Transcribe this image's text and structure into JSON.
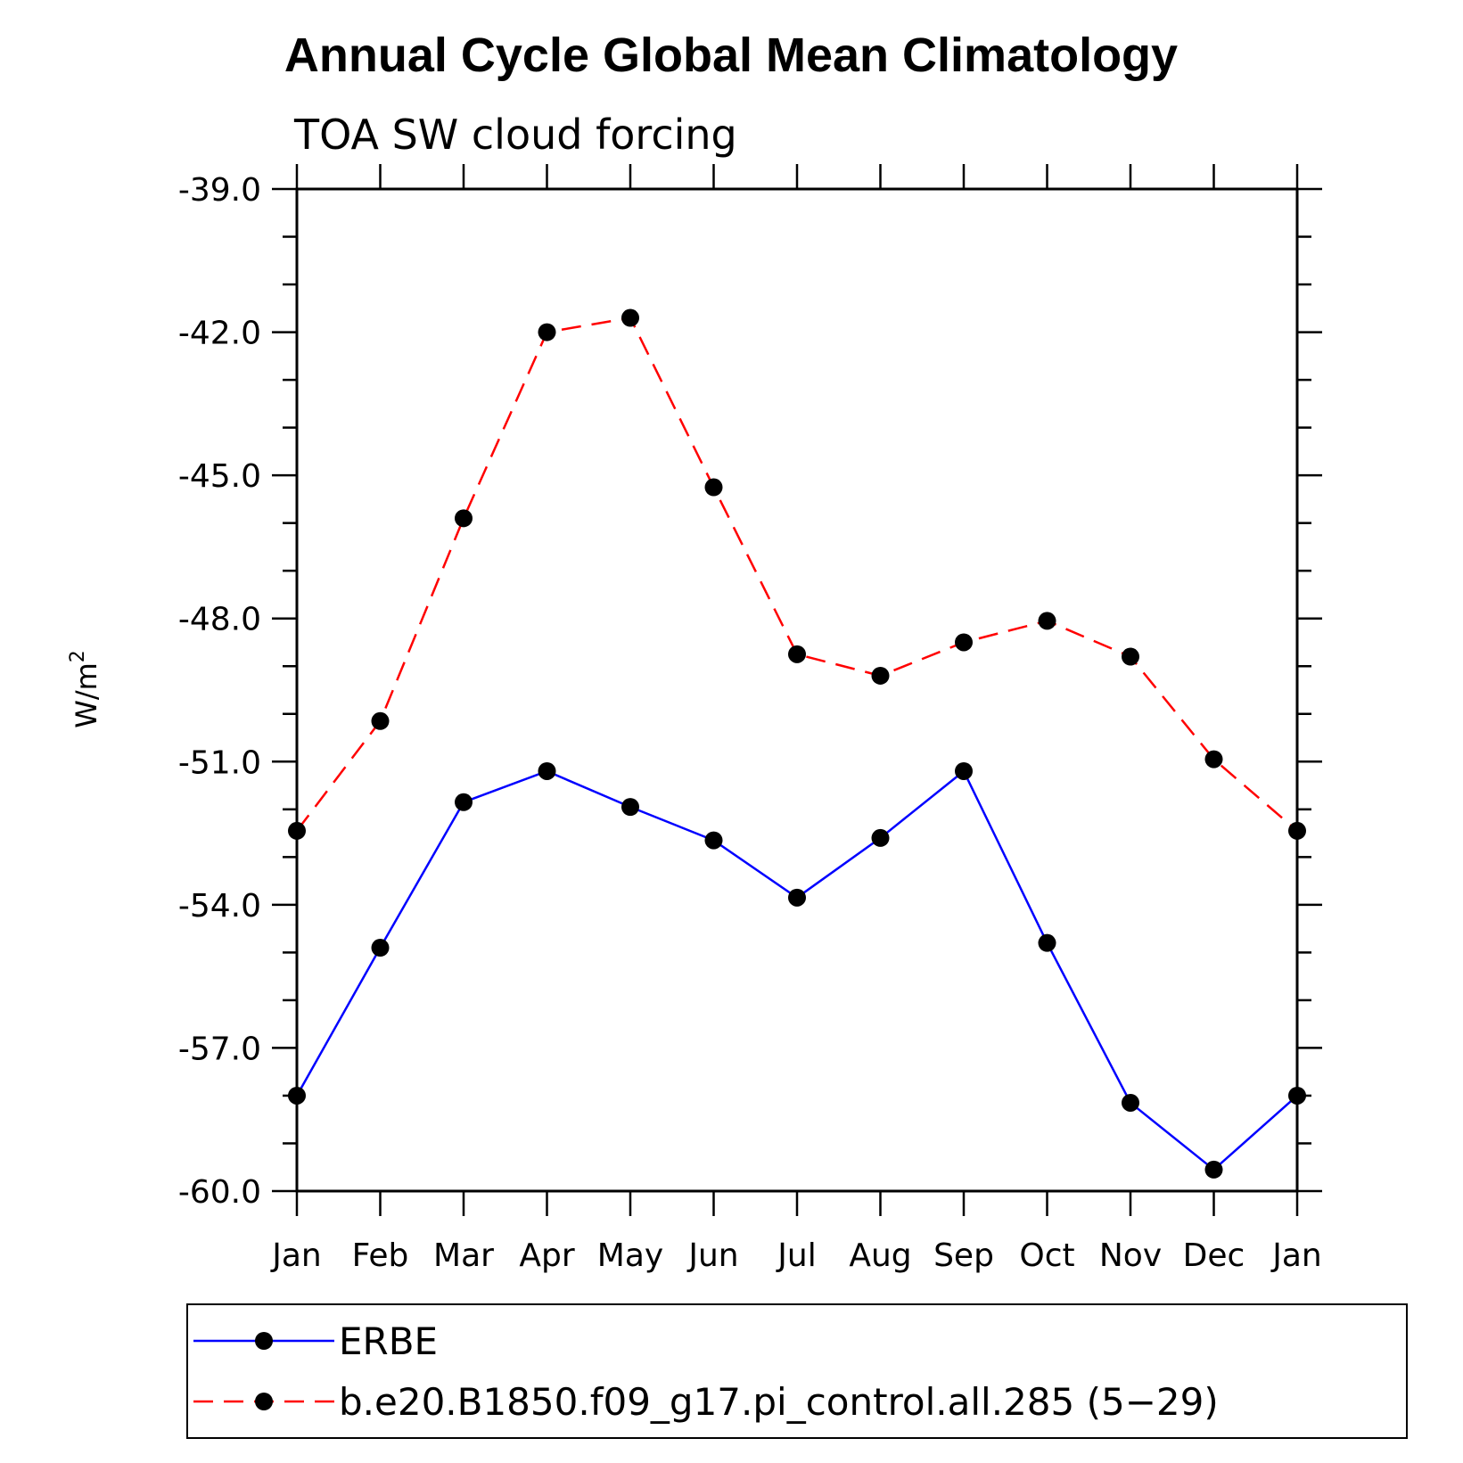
{
  "chart_data": {
    "type": "line",
    "title": "Annual Cycle Global Mean Climatology",
    "subtitle": "TOA SW cloud forcing",
    "ylabel": "W/m",
    "ylabel_sup": "2",
    "xlabel": "",
    "categories": [
      "Jan",
      "Feb",
      "Mar",
      "Apr",
      "May",
      "Jun",
      "Jul",
      "Aug",
      "Sep",
      "Oct",
      "Nov",
      "Dec",
      "Jan"
    ],
    "ylim": [
      -60.0,
      -39.0
    ],
    "yticks": [
      "-39.0",
      "-42.0",
      "-45.0",
      "-48.0",
      "-51.0",
      "-54.0",
      "-57.0",
      "-60.0"
    ],
    "legend_position": "bottom",
    "grid": false,
    "series": [
      {
        "name": "ERBE",
        "color": "#0000ff",
        "dash": "solid",
        "marker": "filled-circle",
        "values": [
          -58.0,
          -54.9,
          -51.85,
          -51.2,
          -51.95,
          -52.65,
          -53.85,
          -52.6,
          -51.2,
          -54.8,
          -58.15,
          -59.55,
          -58.0
        ]
      },
      {
        "name": "b.e20.B1850.f09_g17.pi_control.all.285 (5−29)",
        "color": "#ff0000",
        "dash": "dashed",
        "marker": "filled-circle",
        "values": [
          -52.45,
          -50.15,
          -45.9,
          -42.0,
          -41.7,
          -45.25,
          -48.75,
          -49.2,
          -48.5,
          -48.05,
          -48.8,
          -50.95,
          -52.45
        ]
      }
    ]
  }
}
